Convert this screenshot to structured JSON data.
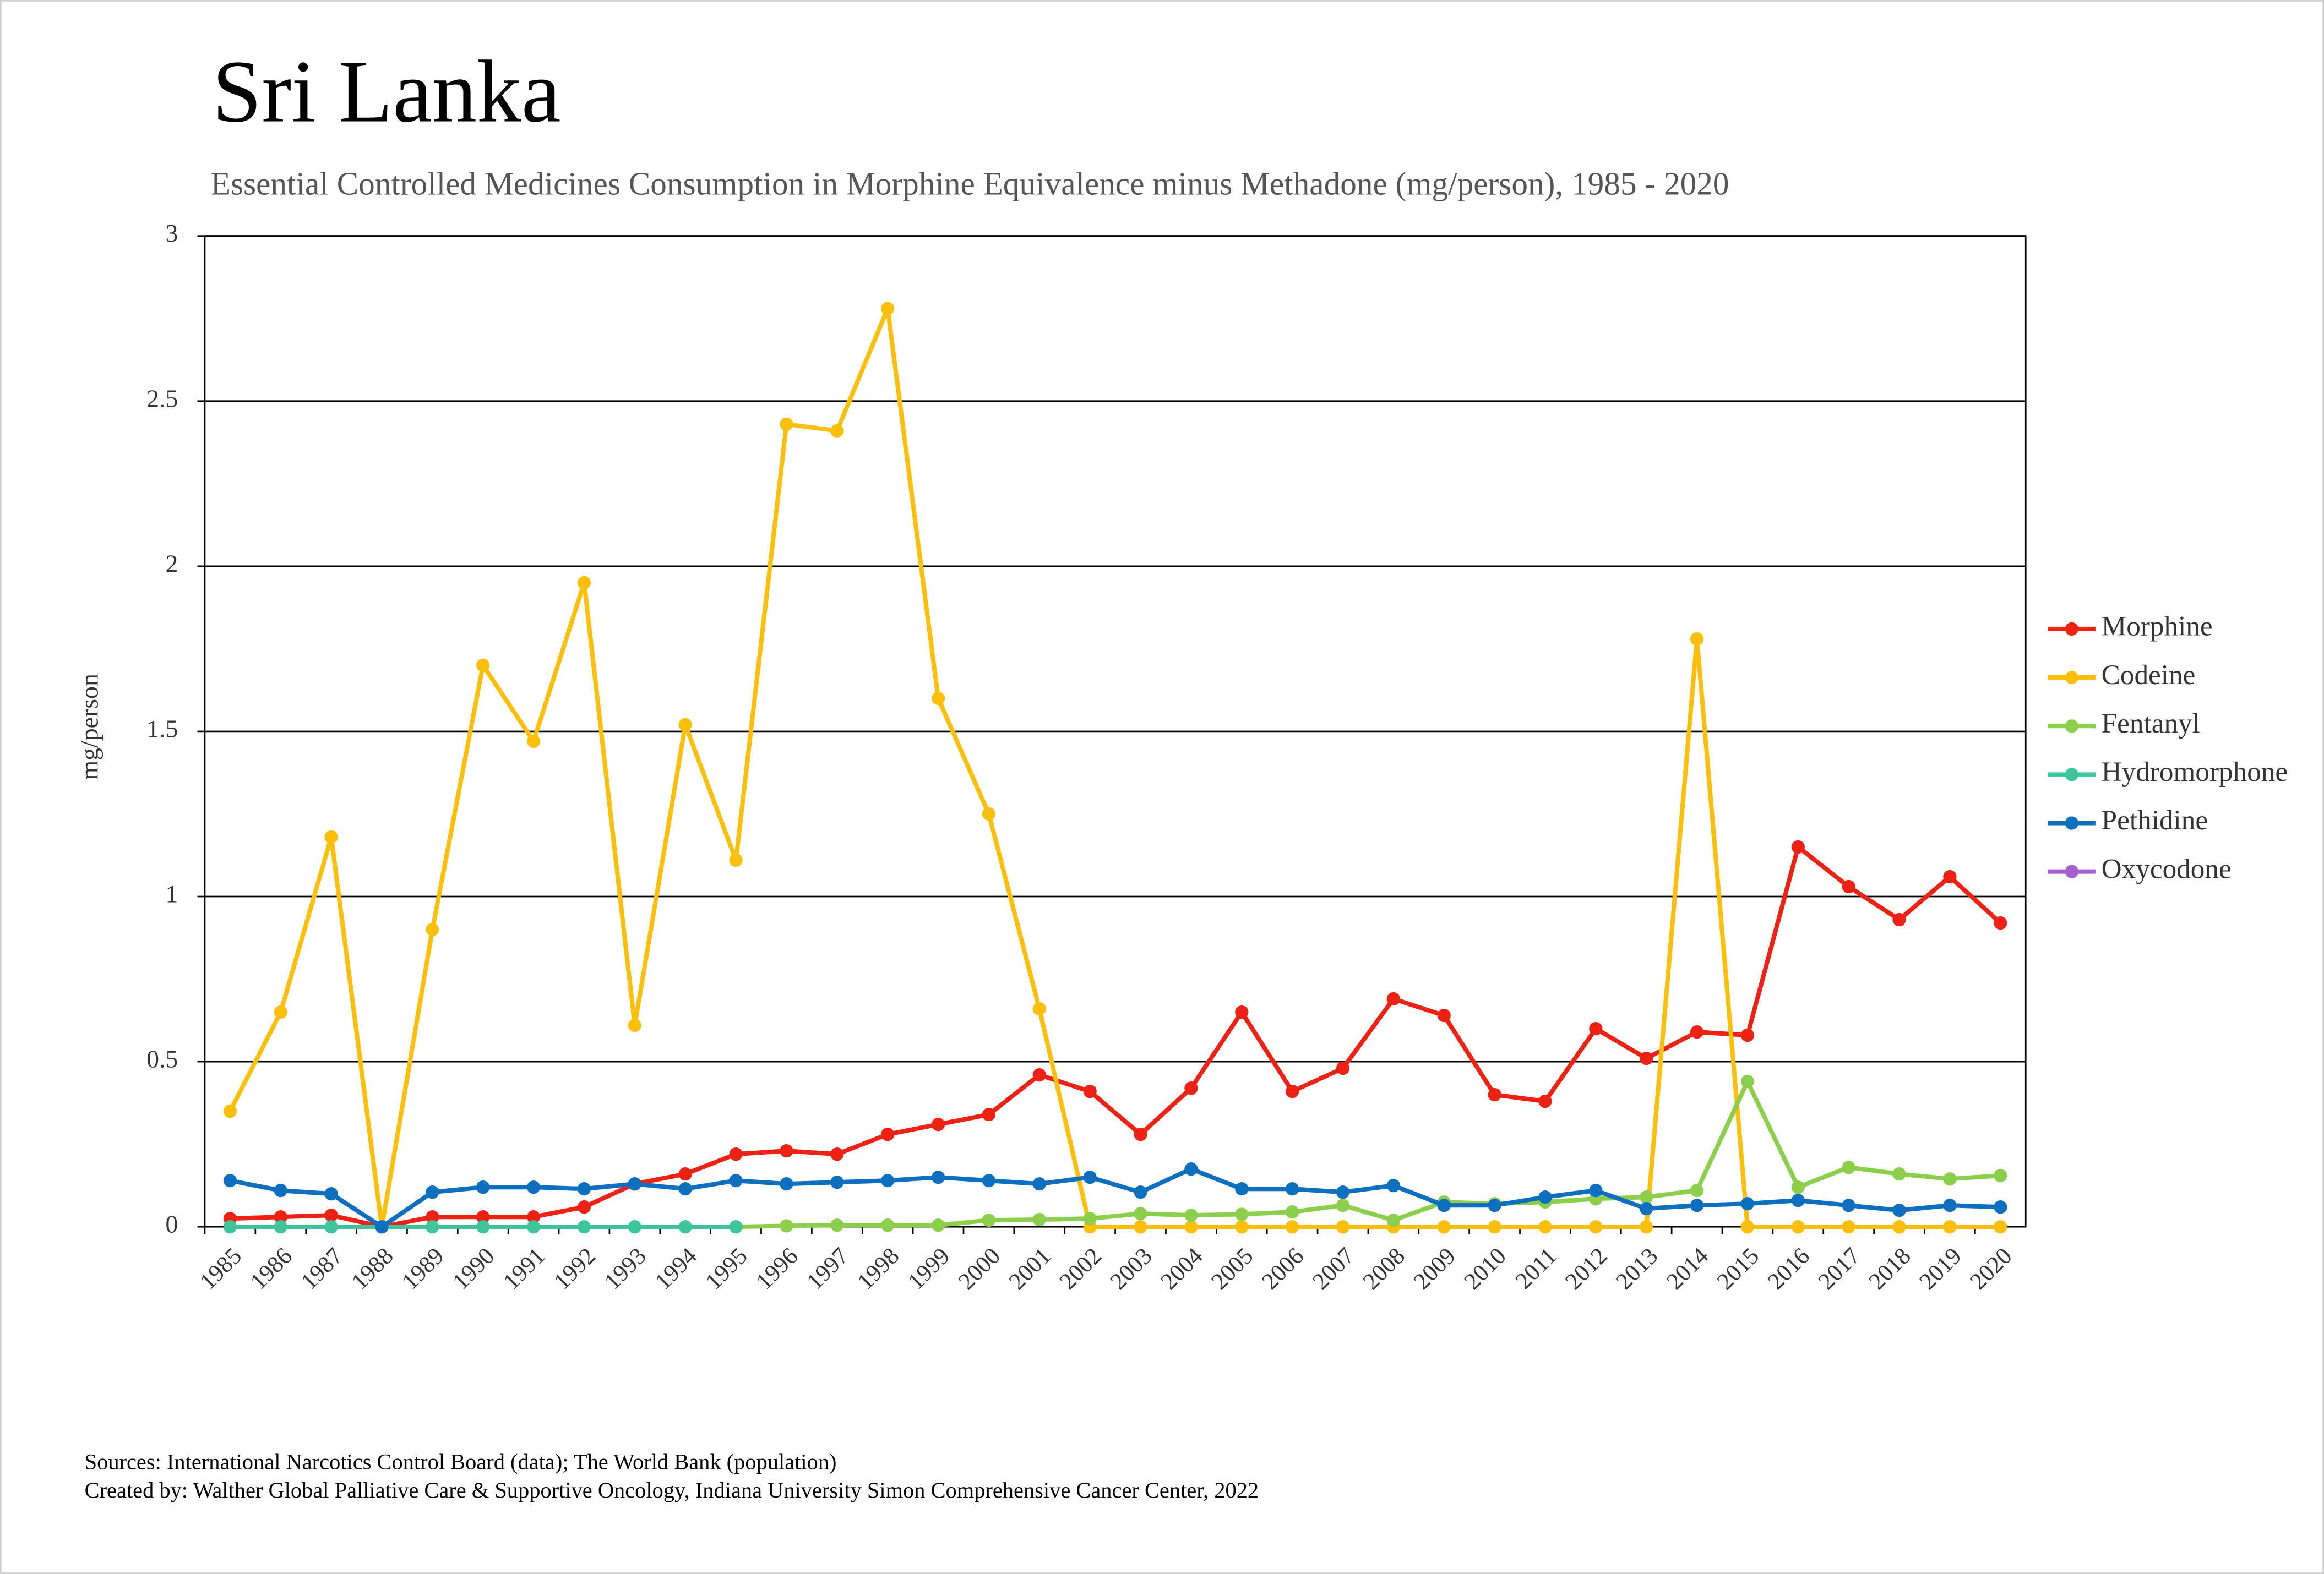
{
  "chart_data": {
    "type": "line",
    "title": "Sri Lanka",
    "subtitle": "Essential Controlled Medicines Consumption in Morphine Equivalence minus Methadone (mg/person), 1985 - 2020",
    "y_label": "mg/person",
    "sources": [
      "Sources: International Narcotics Control Board (data); The World Bank (population)",
      "Created by: Walther Global Palliative Care & Supportive Oncology, Indiana University Simon Comprehensive Cancer Center, 2022"
    ],
    "categories": [
      "1985",
      "1986",
      "1987",
      "1988",
      "1989",
      "1990",
      "1991",
      "1992",
      "1993",
      "1994",
      "1995",
      "1996",
      "1997",
      "1998",
      "1999",
      "2000",
      "2001",
      "2002",
      "2003",
      "2004",
      "2005",
      "2006",
      "2007",
      "2008",
      "2009",
      "2010",
      "2011",
      "2012",
      "2013",
      "2014",
      "2015",
      "2016",
      "2017",
      "2018",
      "2019",
      "2020"
    ],
    "ylim": [
      0,
      3
    ],
    "yticks": [
      0,
      0.5,
      1,
      1.5,
      2,
      2.5,
      3
    ],
    "grid": true,
    "legend": "right",
    "series": [
      {
        "name": "Morphine",
        "color": "#ee2214",
        "values": [
          0.025,
          0.03,
          0.035,
          0,
          0.03,
          0.03,
          0.03,
          0.06,
          0.13,
          0.16,
          0.22,
          0.23,
          0.22,
          0.28,
          0.31,
          0.34,
          0.46,
          0.41,
          0.28,
          0.42,
          0.65,
          0.41,
          0.48,
          0.69,
          0.64,
          0.4,
          0.38,
          0.6,
          0.51,
          0.59,
          0.58,
          1.15,
          1.03,
          0.93,
          1.06,
          0.92
        ]
      },
      {
        "name": "Codeine",
        "color": "#fcbf0c",
        "values": [
          0.35,
          0.65,
          1.18,
          0,
          0.9,
          1.7,
          1.47,
          1.95,
          0.61,
          1.52,
          1.11,
          2.43,
          2.41,
          2.78,
          1.6,
          1.25,
          0.66,
          0,
          0,
          0,
          0,
          0,
          0,
          0,
          0,
          0,
          0,
          0,
          0,
          1.78,
          0,
          0,
          0,
          0,
          0,
          0
        ]
      },
      {
        "name": "Fentanyl",
        "color": "#8ccf4d",
        "values": [
          null,
          null,
          null,
          null,
          null,
          null,
          null,
          null,
          null,
          null,
          0,
          0.003,
          0.005,
          0.005,
          0.005,
          0.02,
          0.022,
          0.025,
          0.04,
          0.035,
          0.038,
          0.045,
          0.065,
          0.02,
          0.075,
          0.07,
          0.075,
          0.085,
          0.09,
          0.11,
          0.44,
          0.12,
          0.18,
          0.16,
          0.145,
          0.155
        ]
      },
      {
        "name": "Hydromorphone",
        "color": "#3fc59a",
        "values": [
          0,
          0,
          0,
          0,
          0,
          0,
          0,
          0,
          0,
          0,
          0,
          null,
          null,
          null,
          null,
          null,
          null,
          null,
          null,
          null,
          null,
          null,
          null,
          null,
          null,
          null,
          null,
          null,
          null,
          null,
          null,
          null,
          null,
          null,
          null,
          null
        ]
      },
      {
        "name": "Pethidine",
        "color": "#0f6fbf",
        "values": [
          0.14,
          0.11,
          0.1,
          0,
          0.105,
          0.12,
          0.12,
          0.115,
          0.13,
          0.115,
          0.14,
          0.13,
          0.135,
          0.14,
          0.15,
          0.14,
          0.13,
          0.15,
          0.105,
          0.175,
          0.115,
          0.115,
          0.105,
          0.125,
          0.065,
          0.065,
          0.09,
          0.11,
          0.055,
          0.065,
          0.07,
          0.08,
          0.065,
          0.05,
          0.065,
          0.06
        ]
      },
      {
        "name": "Oxycodone",
        "color": "#a55fd0",
        "values": [
          null,
          null,
          null,
          null,
          null,
          null,
          null,
          null,
          null,
          null,
          null,
          null,
          null,
          null,
          null,
          null,
          null,
          null,
          null,
          null,
          null,
          null,
          null,
          null,
          null,
          null,
          null,
          null,
          null,
          null,
          null,
          null,
          null,
          null,
          null,
          null
        ]
      }
    ]
  }
}
